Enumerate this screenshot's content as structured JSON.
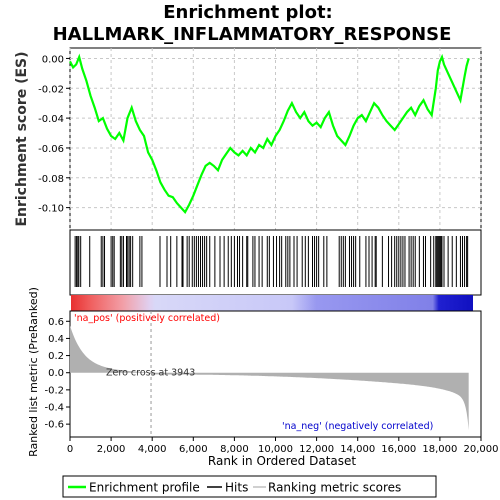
{
  "chart_data": {
    "type": "line",
    "title_line1": "Enrichment plot:",
    "title_line2": "HALLMARK_INFLAMMATORY_RESPONSE",
    "es_panel": {
      "ylabel": "Enrichment score (ES)",
      "ylim": [
        -0.115,
        0.007
      ],
      "yticks": [
        -0.1,
        -0.08,
        -0.06,
        -0.04,
        -0.02,
        0.0
      ],
      "ytick_labels": [
        "-0.10",
        "-0.08",
        "-0.06",
        "-0.04",
        "-0.02",
        "0.00"
      ],
      "grid": true,
      "series_color": "#00ff00",
      "x": [
        0,
        150,
        300,
        450,
        600,
        800,
        1000,
        1200,
        1400,
        1600,
        1800,
        2000,
        2200,
        2400,
        2600,
        2800,
        3000,
        3200,
        3400,
        3600,
        3800,
        4000,
        4200,
        4400,
        4600,
        4800,
        5000,
        5200,
        5400,
        5600,
        5800,
        6000,
        6200,
        6400,
        6600,
        6800,
        7000,
        7200,
        7400,
        7600,
        7800,
        8000,
        8200,
        8400,
        8600,
        8800,
        9000,
        9200,
        9400,
        9600,
        9800,
        10000,
        10200,
        10400,
        10600,
        10800,
        11000,
        11200,
        11400,
        11600,
        11800,
        12000,
        12200,
        12400,
        12600,
        12800,
        13000,
        13200,
        13400,
        13600,
        13800,
        14000,
        14200,
        14400,
        14600,
        14800,
        15000,
        15200,
        15400,
        15600,
        15800,
        16000,
        16200,
        16400,
        16600,
        16800,
        17000,
        17200,
        17400,
        17600,
        17800,
        17900,
        18000,
        18100,
        18200,
        18400,
        18600,
        18800,
        19000,
        19100,
        19200,
        19300,
        19400
      ],
      "y": [
        -0.002,
        -0.006,
        -0.004,
        0.001,
        -0.007,
        -0.015,
        -0.025,
        -0.033,
        -0.042,
        -0.04,
        -0.047,
        -0.052,
        -0.054,
        -0.05,
        -0.055,
        -0.04,
        -0.033,
        -0.042,
        -0.048,
        -0.052,
        -0.063,
        -0.068,
        -0.075,
        -0.083,
        -0.088,
        -0.092,
        -0.093,
        -0.097,
        -0.1,
        -0.103,
        -0.098,
        -0.092,
        -0.085,
        -0.078,
        -0.072,
        -0.07,
        -0.072,
        -0.075,
        -0.068,
        -0.064,
        -0.06,
        -0.063,
        -0.065,
        -0.062,
        -0.065,
        -0.06,
        -0.063,
        -0.058,
        -0.06,
        -0.054,
        -0.058,
        -0.052,
        -0.048,
        -0.042,
        -0.035,
        -0.03,
        -0.036,
        -0.04,
        -0.036,
        -0.042,
        -0.045,
        -0.043,
        -0.046,
        -0.04,
        -0.036,
        -0.045,
        -0.052,
        -0.055,
        -0.058,
        -0.052,
        -0.045,
        -0.04,
        -0.038,
        -0.042,
        -0.036,
        -0.03,
        -0.033,
        -0.038,
        -0.042,
        -0.045,
        -0.048,
        -0.044,
        -0.04,
        -0.036,
        -0.033,
        -0.038,
        -0.032,
        -0.028,
        -0.034,
        -0.038,
        -0.02,
        -0.008,
        -0.002,
        0.001,
        -0.004,
        -0.01,
        -0.016,
        -0.022,
        -0.028,
        -0.02,
        -0.012,
        -0.005,
        0.0
      ]
    },
    "hits": [
      250,
      320,
      380,
      430,
      520,
      960,
      1520,
      1600,
      1680,
      2000,
      2080,
      2150,
      2450,
      2520,
      2600,
      2750,
      2810,
      2880,
      2950,
      3050,
      3400,
      3500,
      4380,
      4720,
      4900,
      5200,
      5450,
      5500,
      5700,
      5800,
      5950,
      6050,
      6150,
      6250,
      6350,
      6450,
      6550,
      6650,
      6800,
      7050,
      7300,
      7500,
      7700,
      7850,
      8000,
      8150,
      8250,
      8400,
      8600,
      8650,
      8900,
      9000,
      9200,
      9350,
      9600,
      9700,
      9900,
      10050,
      10200,
      10300,
      10500,
      10600,
      10700,
      10900,
      11050,
      11300,
      11450,
      11600,
      11800,
      11900,
      12000,
      12100,
      12350,
      12500,
      13100,
      13200,
      13300,
      13400,
      13600,
      13700,
      13800,
      13900,
      14100,
      14400,
      14550,
      14700,
      14850,
      14900,
      15200,
      15500,
      15650,
      15800,
      15900,
      16000,
      16100,
      16200,
      16300,
      16500,
      16600,
      16700,
      16800,
      17000,
      17200,
      17300,
      17550,
      17700,
      17800,
      17850,
      17900,
      17950,
      18000,
      18050,
      18100,
      18200,
      18400,
      18600,
      18800,
      19000,
      19100,
      19200,
      19300,
      19350
    ],
    "colorbar": {
      "pos_label": "'na_pos' (positively correlated)",
      "neg_label": "'na_neg' (negatively correlated)",
      "pos_color": "#ff0000",
      "neg_color": "#0000ff",
      "pos_label_color": "#ff0000",
      "neg_label_color": "#0000cc"
    },
    "metric_panel": {
      "ylabel": "Ranked list metric (PreRanked)",
      "xlabel": "Rank in Ordered Dataset",
      "ylim": [
        -0.75,
        0.72
      ],
      "yticks": [
        -0.6,
        -0.4,
        -0.2,
        0.0,
        0.2,
        0.4,
        0.6
      ],
      "ytick_labels": [
        "-0.6",
        "-0.4",
        "-0.2",
        "0.0",
        "0.2",
        "0.4",
        "0.6"
      ],
      "xlim": [
        0,
        20000
      ],
      "xticks": [
        0,
        2000,
        4000,
        6000,
        8000,
        10000,
        12000,
        14000,
        16000,
        18000,
        20000
      ],
      "xtick_labels": [
        "0",
        "2,000",
        "4,000",
        "6,000",
        "8,000",
        "10,000",
        "12,000",
        "14,000",
        "16,000",
        "18,000",
        "20,000"
      ],
      "zero_cross": 3943,
      "zero_cross_label": "Zero cross at 3943",
      "fill_color": "#b0b0b0",
      "n_genes": 19400
    },
    "legend": {
      "items": [
        {
          "label": "Enrichment profile",
          "color": "#00ff00"
        },
        {
          "label": "Hits",
          "color": "#000000"
        },
        {
          "label": "Ranking metric scores",
          "color": "#c0c0c0"
        }
      ]
    }
  }
}
